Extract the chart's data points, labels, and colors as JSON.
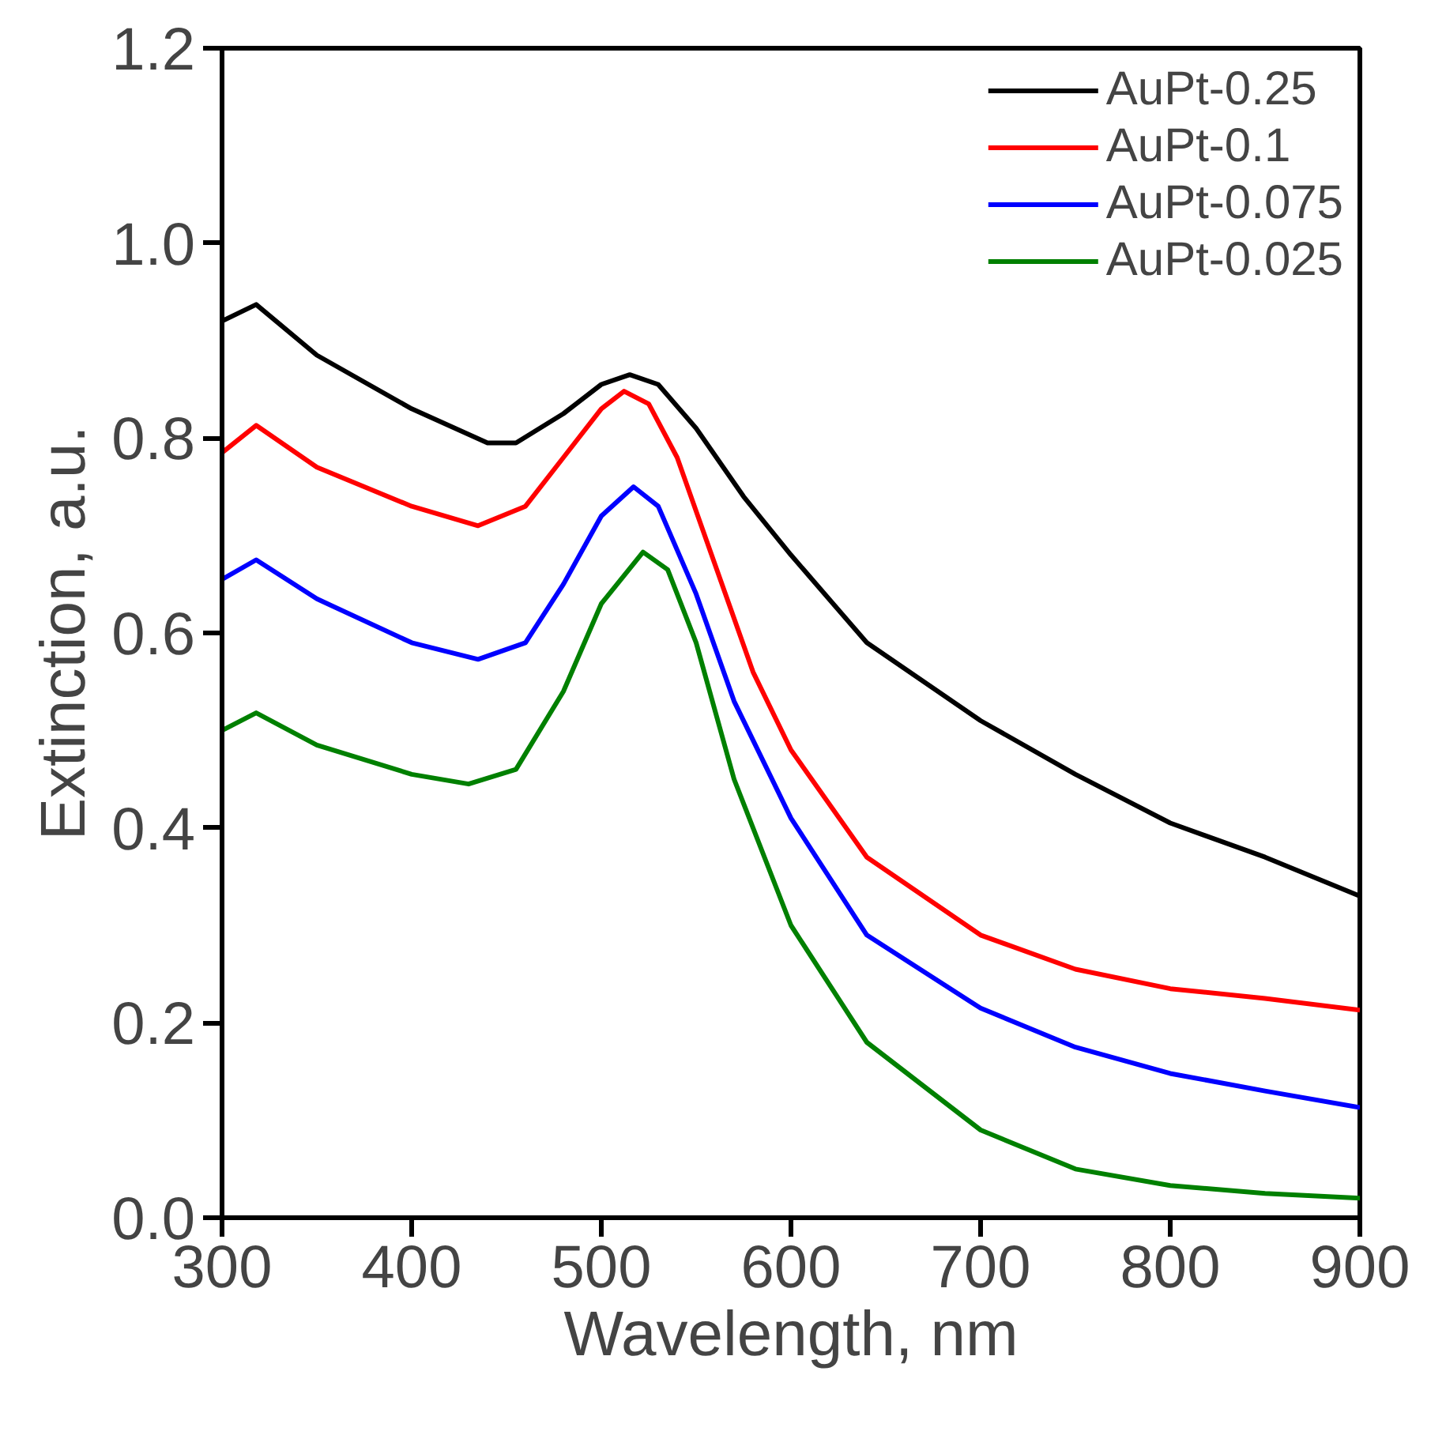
{
  "chart_data": {
    "type": "line",
    "xlabel": "Wavelength, nm",
    "ylabel": "Extinction, a.u.",
    "xlim": [
      300,
      900
    ],
    "xticks": [
      300,
      400,
      500,
      600,
      700,
      800,
      900
    ],
    "ylim": [
      0,
      1.2
    ],
    "yticks": [
      {
        "value": 0,
        "label": "0.0"
      },
      0.2,
      0.4,
      0.6,
      0.8,
      {
        "value": 1,
        "label": "1.0"
      },
      1.2
    ],
    "grid": false,
    "legend": "top right",
    "line_style": "solid",
    "series": [
      {
        "name": "AuPt-0.25",
        "color": "#000000",
        "x": [
          300,
          318,
          350,
          400,
          440,
          455,
          480,
          500,
          515,
          530,
          550,
          575,
          600,
          640,
          700,
          750,
          800,
          850,
          900
        ],
        "values": [
          0.92,
          0.937,
          0.885,
          0.83,
          0.795,
          0.795,
          0.825,
          0.855,
          0.865,
          0.855,
          0.81,
          0.74,
          0.68,
          0.59,
          0.51,
          0.455,
          0.405,
          0.37,
          0.33
        ]
      },
      {
        "name": "AuPt-0.1",
        "color": "#ff0000",
        "x": [
          300,
          318,
          350,
          400,
          435,
          460,
          480,
          500,
          512,
          525,
          540,
          560,
          580,
          600,
          640,
          700,
          750,
          800,
          850,
          900
        ],
        "values": [
          0.785,
          0.813,
          0.77,
          0.73,
          0.71,
          0.73,
          0.78,
          0.83,
          0.848,
          0.835,
          0.78,
          0.67,
          0.56,
          0.48,
          0.37,
          0.29,
          0.255,
          0.235,
          0.225,
          0.213
        ]
      },
      {
        "name": "AuPt-0.075",
        "color": "#0000ff",
        "x": [
          300,
          318,
          350,
          400,
          435,
          460,
          480,
          500,
          517,
          530,
          550,
          570,
          600,
          640,
          700,
          750,
          800,
          850,
          900
        ],
        "values": [
          0.655,
          0.675,
          0.635,
          0.59,
          0.573,
          0.59,
          0.65,
          0.72,
          0.75,
          0.73,
          0.64,
          0.53,
          0.41,
          0.29,
          0.215,
          0.175,
          0.148,
          0.13,
          0.113
        ]
      },
      {
        "name": "AuPt-0.025",
        "color": "#008000",
        "x": [
          300,
          318,
          350,
          400,
          430,
          455,
          480,
          500,
          522,
          535,
          550,
          570,
          600,
          640,
          700,
          750,
          800,
          850,
          900
        ],
        "values": [
          0.5,
          0.518,
          0.485,
          0.455,
          0.445,
          0.46,
          0.54,
          0.63,
          0.683,
          0.665,
          0.59,
          0.45,
          0.3,
          0.18,
          0.09,
          0.05,
          0.033,
          0.025,
          0.02
        ]
      }
    ]
  }
}
